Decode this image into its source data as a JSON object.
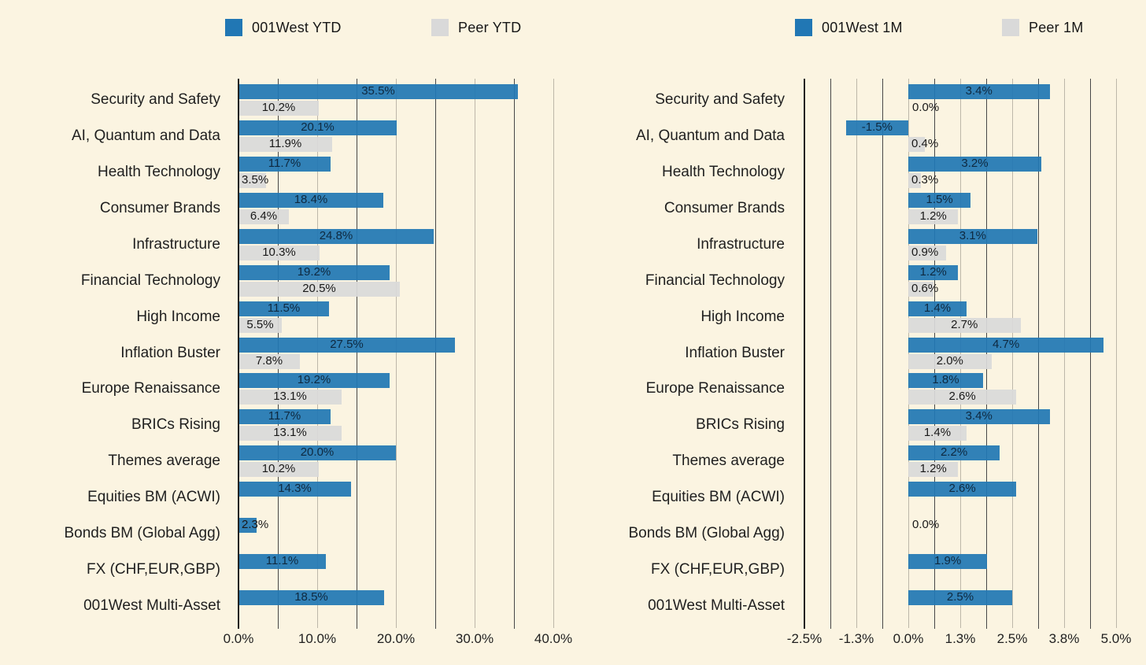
{
  "page": {
    "background_color": "#fbf4e1"
  },
  "colors": {
    "bar_blue": "#2177b4",
    "bar_gray": "#d9d9d9",
    "text_dark": "#1f1f1f",
    "value_on_blue": "#0e2940",
    "value_on_gray": "#191919",
    "grid_minor": "#474747",
    "grid_major": "#bdb7a9",
    "axis_edge": "#222222"
  },
  "chart_data": [
    {
      "id": "ytd",
      "type": "bar",
      "orientation": "horizontal",
      "legend_position": "top",
      "grid": true,
      "categories": [
        "Security and Safety",
        "AI, Quantum and Data",
        "Health Technology",
        "Consumer Brands",
        "Infrastructure",
        "Financial Technology",
        "High Income",
        "Inflation Buster",
        "Europe Renaissance",
        "BRICs Rising",
        "Themes average",
        "Equities BM (ACWI)",
        "Bonds BM (Global Agg)",
        "FX (CHF,EUR,GBP)",
        "001West Multi-Asset"
      ],
      "series": [
        {
          "name": "001West YTD",
          "color": "#2177b4",
          "values": [
            35.5,
            20.1,
            11.7,
            18.4,
            24.8,
            19.2,
            11.5,
            27.5,
            19.2,
            11.7,
            20.0,
            14.3,
            2.3,
            11.1,
            18.5
          ],
          "labels": [
            "35.5%",
            "20.1%",
            "11.7%",
            "18.4%",
            "24.8%",
            "19.2%",
            "11.5%",
            "27.5%",
            "19.2%",
            "11.7%",
            "20.0%",
            "14.3%",
            "2.3%",
            "11.1%",
            "18.5%"
          ]
        },
        {
          "name": "Peer YTD",
          "color": "#d9d9d9",
          "values": [
            10.2,
            11.9,
            3.5,
            6.4,
            10.3,
            20.5,
            5.5,
            7.8,
            13.1,
            13.1,
            10.2,
            null,
            null,
            null,
            null
          ],
          "labels": [
            "10.2%",
            "11.9%",
            "3.5%",
            "6.4%",
            "10.3%",
            "20.5%",
            "5.5%",
            "7.8%",
            "13.1%",
            "13.1%",
            "10.2%",
            "",
            "",
            "",
            ""
          ]
        }
      ],
      "x_axis": {
        "min": 0,
        "max": 42.5,
        "majors": [
          {
            "value": 0,
            "label": "0.0%"
          },
          {
            "value": 10,
            "label": "10.0%"
          },
          {
            "value": 20,
            "label": "20.0%"
          },
          {
            "value": 30,
            "label": "30.0%"
          },
          {
            "value": 40,
            "label": "40.0%"
          }
        ],
        "minors": [
          5,
          15,
          25,
          35
        ]
      }
    },
    {
      "id": "m1",
      "type": "bar",
      "orientation": "horizontal",
      "legend_position": "top",
      "grid": true,
      "categories": [
        "Security and Safety",
        "AI, Quantum and Data",
        "Health Technology",
        "Consumer Brands",
        "Infrastructure",
        "Financial Technology",
        "High Income",
        "Inflation Buster",
        "Europe Renaissance",
        "BRICs Rising",
        "Themes average",
        "Equities BM (ACWI)",
        "Bonds BM (Global Agg)",
        "FX (CHF,EUR,GBP)",
        "001West Multi-Asset"
      ],
      "series": [
        {
          "name": "001West 1M",
          "color": "#2177b4",
          "values": [
            3.4,
            -1.5,
            3.2,
            1.5,
            3.1,
            1.2,
            1.4,
            4.7,
            1.8,
            3.4,
            2.2,
            2.6,
            0.0,
            1.9,
            2.5
          ],
          "labels": [
            "3.4%",
            "-1.5%",
            "3.2%",
            "1.5%",
            "3.1%",
            "1.2%",
            "1.4%",
            "4.7%",
            "1.8%",
            "3.4%",
            "2.2%",
            "2.6%",
            "0.0%",
            "1.9%",
            "2.5%"
          ]
        },
        {
          "name": "Peer 1M",
          "color": "#d9d9d9",
          "values": [
            0.0,
            0.4,
            0.3,
            1.2,
            0.9,
            0.6,
            2.7,
            2.0,
            2.6,
            1.4,
            1.2,
            null,
            null,
            null,
            null
          ],
          "labels": [
            "0.0%",
            "0.4%",
            "0.3%",
            "1.2%",
            "0.9%",
            "0.6%",
            "2.7%",
            "2.0%",
            "2.6%",
            "1.4%",
            "1.2%",
            "",
            "",
            "",
            ""
          ]
        }
      ],
      "x_axis": {
        "min": -2.5,
        "max": 5.1,
        "majors": [
          {
            "value": -2.5,
            "label": "-2.5%"
          },
          {
            "value": -1.25,
            "label": "-1.3%"
          },
          {
            "value": 0,
            "label": "0.0%"
          },
          {
            "value": 1.25,
            "label": "1.3%"
          },
          {
            "value": 2.5,
            "label": "2.5%"
          },
          {
            "value": 3.75,
            "label": "3.8%"
          },
          {
            "value": 5,
            "label": "5.0%"
          }
        ],
        "minors": [
          -1.875,
          -0.625,
          0.625,
          1.875,
          3.125,
          4.375
        ]
      }
    }
  ]
}
